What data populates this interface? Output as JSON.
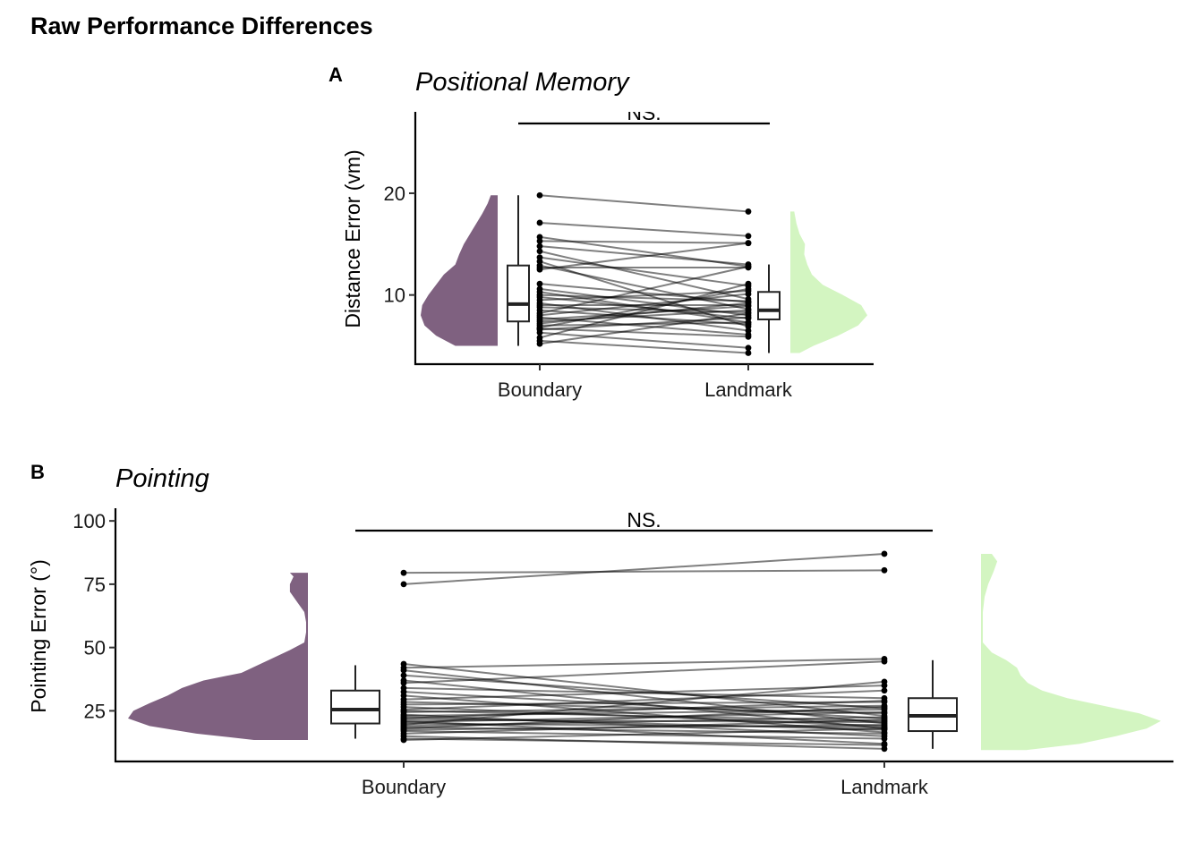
{
  "figure_title": "Raw Performance Differences",
  "chart_data": [
    {
      "tag": "A",
      "type": "raincloud",
      "title": "Positional Memory",
      "xlabel": "",
      "ylabel": "Distance Error (vm)",
      "ylim": [
        3.2,
        28
      ],
      "yticks": [
        10,
        20
      ],
      "categories": [
        "Boundary",
        "Landmark"
      ],
      "colors": {
        "Boundary": "#7f6180",
        "Landmark": "#d3f5c1"
      },
      "significance": "NS.",
      "grid": false,
      "legend": "none",
      "boxplots": [
        {
          "category": "Boundary",
          "min": 5.0,
          "q1": 7.4,
          "median": 9.1,
          "q3": 12.9,
          "max": 19.8
        },
        {
          "category": "Landmark",
          "min": 4.3,
          "q1": 7.6,
          "median": 8.5,
          "q3": 10.3,
          "max": 13.0
        }
      ],
      "densities": [
        {
          "category": "Boundary",
          "ymin": 5.0,
          "ymax": 19.8,
          "profile": [
            [
              5.0,
              0.55
            ],
            [
              6.0,
              0.8
            ],
            [
              7.0,
              0.95
            ],
            [
              8.0,
              1.0
            ],
            [
              9.0,
              0.98
            ],
            [
              10.0,
              0.9
            ],
            [
              11.0,
              0.8
            ],
            [
              12.0,
              0.7
            ],
            [
              13.0,
              0.55
            ],
            [
              14.0,
              0.5
            ],
            [
              15.0,
              0.44
            ],
            [
              16.0,
              0.36
            ],
            [
              17.0,
              0.28
            ],
            [
              18.0,
              0.2
            ],
            [
              19.0,
              0.13
            ],
            [
              19.8,
              0.09
            ]
          ]
        },
        {
          "category": "Landmark",
          "ymin": 4.3,
          "ymax": 18.2,
          "profile": [
            [
              4.3,
              0.12
            ],
            [
              5.0,
              0.3
            ],
            [
              6.0,
              0.62
            ],
            [
              7.0,
              0.88
            ],
            [
              8.0,
              1.0
            ],
            [
              9.0,
              0.92
            ],
            [
              10.0,
              0.68
            ],
            [
              11.0,
              0.42
            ],
            [
              12.0,
              0.28
            ],
            [
              13.0,
              0.22
            ],
            [
              14.0,
              0.18
            ],
            [
              15.0,
              0.19
            ],
            [
              16.0,
              0.12
            ],
            [
              17.0,
              0.08
            ],
            [
              18.2,
              0.05
            ]
          ]
        }
      ],
      "pairs": [
        [
          19.8,
          18.2
        ],
        [
          17.1,
          15.8
        ],
        [
          15.7,
          12.8
        ],
        [
          15.3,
          15.1
        ],
        [
          14.8,
          13.0
        ],
        [
          14.3,
          9.6
        ],
        [
          13.7,
          10.9
        ],
        [
          13.3,
          6.9
        ],
        [
          12.9,
          8.6
        ],
        [
          12.7,
          12.7
        ],
        [
          12.5,
          15.1
        ],
        [
          11.1,
          9.3
        ],
        [
          10.6,
          8.0
        ],
        [
          10.3,
          7.3
        ],
        [
          10.0,
          9.4
        ],
        [
          9.8,
          7.7
        ],
        [
          9.5,
          10.4
        ],
        [
          9.2,
          6.5
        ],
        [
          9.0,
          9.0
        ],
        [
          8.8,
          8.3
        ],
        [
          8.5,
          7.1
        ],
        [
          8.2,
          12.8
        ],
        [
          8.0,
          10.1
        ],
        [
          7.8,
          6.1
        ],
        [
          7.6,
          8.9
        ],
        [
          7.4,
          8.5
        ],
        [
          7.2,
          9.2
        ],
        [
          7.0,
          7.3
        ],
        [
          6.8,
          10.6
        ],
        [
          6.7,
          5.9
        ],
        [
          6.6,
          7.8
        ],
        [
          6.3,
          4.8
        ],
        [
          5.8,
          11.1
        ],
        [
          5.5,
          4.3
        ],
        [
          5.2,
          8.2
        ]
      ]
    },
    {
      "tag": "B",
      "type": "raincloud",
      "title": "Pointing",
      "xlabel": "",
      "ylabel": "Pointing Error (°)",
      "ylim": [
        5,
        105
      ],
      "yticks": [
        25,
        50,
        75,
        100
      ],
      "categories": [
        "Boundary",
        "Landmark"
      ],
      "colors": {
        "Boundary": "#7f6180",
        "Landmark": "#d3f5c1"
      },
      "significance": "NS.",
      "grid": false,
      "legend": "none",
      "boxplots": [
        {
          "category": "Boundary",
          "min": 14.0,
          "q1": 20.0,
          "median": 25.5,
          "q3": 33.0,
          "max": 43.0
        },
        {
          "category": "Landmark",
          "min": 10.0,
          "q1": 17.0,
          "median": 23.0,
          "q3": 30.0,
          "max": 45.0
        }
      ],
      "densities": [
        {
          "category": "Boundary",
          "ymin": 13.5,
          "ymax": 79.5,
          "profile": [
            [
              13.5,
              0.3
            ],
            [
              16,
              0.62
            ],
            [
              19,
              0.88
            ],
            [
              22,
              1.0
            ],
            [
              25,
              0.97
            ],
            [
              28,
              0.88
            ],
            [
              31,
              0.78
            ],
            [
              34,
              0.7
            ],
            [
              37,
              0.58
            ],
            [
              40,
              0.37
            ],
            [
              43,
              0.28
            ],
            [
              46,
              0.19
            ],
            [
              49,
              0.1
            ],
            [
              52,
              0.02
            ],
            [
              56,
              0.01
            ],
            [
              60,
              0.01
            ],
            [
              64,
              0.02
            ],
            [
              68,
              0.06
            ],
            [
              72,
              0.1
            ],
            [
              75,
              0.1
            ],
            [
              78,
              0.08
            ],
            [
              79.5,
              0.1
            ]
          ]
        },
        {
          "category": "Landmark",
          "ymin": 9.5,
          "ymax": 87.0,
          "profile": [
            [
              9.5,
              0.25
            ],
            [
              12,
              0.55
            ],
            [
              15,
              0.75
            ],
            [
              18,
              0.92
            ],
            [
              21,
              1.0
            ],
            [
              24,
              0.88
            ],
            [
              27,
              0.68
            ],
            [
              30,
              0.48
            ],
            [
              33,
              0.34
            ],
            [
              36,
              0.26
            ],
            [
              39,
              0.22
            ],
            [
              42,
              0.2
            ],
            [
              45,
              0.14
            ],
            [
              48,
              0.06
            ],
            [
              52,
              0.01
            ],
            [
              58,
              0.01
            ],
            [
              64,
              0.01
            ],
            [
              70,
              0.02
            ],
            [
              75,
              0.04
            ],
            [
              80,
              0.07
            ],
            [
              84,
              0.09
            ],
            [
              87,
              0.06
            ]
          ]
        }
      ],
      "pairs": [
        [
          79.5,
          80.5
        ],
        [
          75.0,
          87.0
        ],
        [
          43.5,
          23.0
        ],
        [
          42.0,
          45.5
        ],
        [
          41.0,
          20.0
        ],
        [
          39.0,
          26.0
        ],
        [
          37.0,
          18.0
        ],
        [
          36.0,
          44.5
        ],
        [
          34.0,
          30.0
        ],
        [
          32.5,
          22.0
        ],
        [
          31.0,
          16.5
        ],
        [
          29.5,
          35.0
        ],
        [
          28.5,
          24.0
        ],
        [
          27.5,
          28.5
        ],
        [
          26.5,
          19.0
        ],
        [
          25.5,
          33.0
        ],
        [
          25.0,
          21.0
        ],
        [
          24.5,
          27.0
        ],
        [
          23.5,
          15.0
        ],
        [
          23.0,
          25.5
        ],
        [
          22.5,
          17.5
        ],
        [
          22.0,
          29.0
        ],
        [
          21.5,
          20.5
        ],
        [
          21.0,
          12.0
        ],
        [
          20.5,
          24.5
        ],
        [
          20.0,
          18.5
        ],
        [
          19.5,
          36.5
        ],
        [
          19.0,
          22.5
        ],
        [
          18.5,
          16.0
        ],
        [
          18.0,
          26.5
        ],
        [
          17.5,
          19.5
        ],
        [
          17.0,
          14.0
        ],
        [
          16.0,
          21.5
        ],
        [
          15.0,
          10.0
        ],
        [
          14.0,
          11.5
        ],
        [
          13.5,
          18.0
        ]
      ]
    }
  ]
}
